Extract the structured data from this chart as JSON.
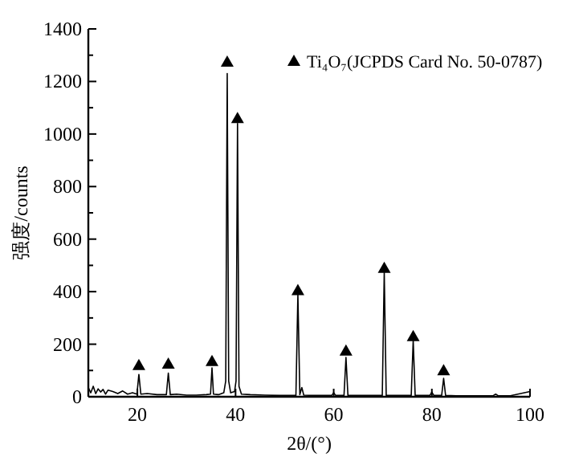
{
  "chart_data": {
    "type": "line",
    "xlabel": "2θ/(°)",
    "ylabel": "强度/counts",
    "xlim": [
      10,
      100
    ],
    "ylim": [
      0,
      1400
    ],
    "xticks": [
      20,
      40,
      60,
      80,
      100
    ],
    "yticks": [
      0,
      {
        "value": 100,
        "label": null
      },
      200,
      {
        "value": 300,
        "label": null
      },
      400,
      {
        "value": 500,
        "label": null
      },
      600,
      {
        "value": 700,
        "label": null
      },
      800,
      {
        "value": 900,
        "label": null
      },
      1000,
      {
        "value": 1100,
        "label": null
      },
      1200,
      {
        "value": 1300,
        "label": null
      },
      1400
    ],
    "legend": "top right",
    "grid": false,
    "series": [
      {
        "type": "line",
        "color": "#000000",
        "marker": "none",
        "x": [
          10,
          10.5,
          11,
          11.5,
          12,
          12.5,
          13,
          13.5,
          14,
          15,
          16,
          17,
          18,
          19,
          19.9,
          20.3,
          20.7,
          22,
          24,
          25.9,
          26.3,
          26.7,
          28,
          30,
          32,
          34,
          34.9,
          35.2,
          35.5,
          36.5,
          37.6,
          38.0,
          38.3,
          38.6,
          39.0,
          39.8,
          40.1,
          40.4,
          40.7,
          41.2,
          43,
          46,
          49,
          52.3,
          52.7,
          53.1,
          53.5,
          53.9,
          56,
          59.6,
          60,
          60.4,
          62.1,
          62.5,
          62.9,
          65,
          68,
          69.9,
          70.3,
          70.7,
          73,
          75.8,
          76.2,
          76.6,
          78,
          79.6,
          80,
          80.4,
          82,
          82.4,
          82.8,
          85,
          88,
          92.5,
          93,
          93.5,
          96,
          100
        ],
        "values": [
          35,
          15,
          40,
          12,
          30,
          18,
          28,
          10,
          25,
          20,
          12,
          22,
          10,
          15,
          10,
          85,
          10,
          12,
          8,
          8,
          90,
          8,
          10,
          6,
          6,
          8,
          10,
          110,
          10,
          8,
          15,
          60,
          1230,
          60,
          15,
          20,
          60,
          1040,
          40,
          10,
          8,
          6,
          5,
          5,
          390,
          8,
          35,
          6,
          5,
          5,
          15,
          5,
          5,
          150,
          5,
          5,
          5,
          5,
          475,
          5,
          5,
          5,
          215,
          5,
          5,
          5,
          18,
          5,
          5,
          70,
          5,
          4,
          4,
          4,
          10,
          4,
          4,
          20
        ]
      },
      {
        "type": "scatter",
        "name": "Ti₄O₇(JCPDS Card No. 50-0787)",
        "color": "#000000",
        "marker": "triangle",
        "x": [
          20.3,
          26.3,
          35.2,
          38.3,
          40.4,
          52.7,
          62.5,
          70.3,
          76.2,
          82.4
        ],
        "values": [
          120,
          125,
          135,
          1275,
          1060,
          405,
          175,
          490,
          230,
          100
        ]
      }
    ]
  }
}
